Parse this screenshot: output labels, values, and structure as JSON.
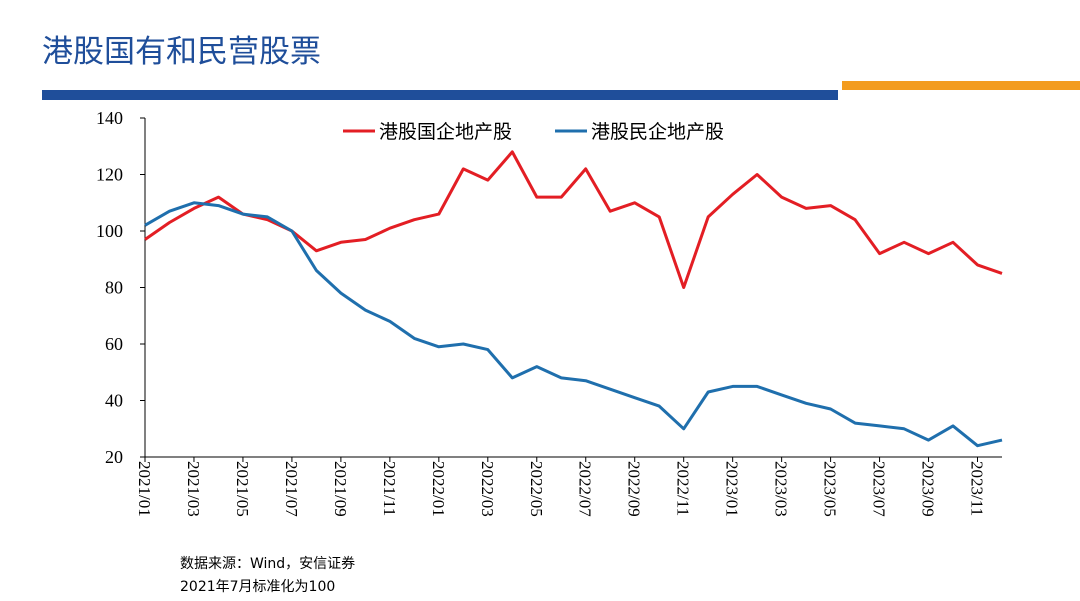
{
  "title": "港股国有和民营股票",
  "notes": [
    "数据来源：Wind，安信证券",
    "2021年7月标准化为100"
  ],
  "chart_data": {
    "type": "line",
    "categories": [
      "2021/01",
      null,
      "2021/03",
      null,
      "2021/05",
      null,
      "2021/07",
      null,
      "2021/09",
      null,
      "2021/11",
      null,
      "2022/01",
      null,
      "2022/03",
      null,
      "2022/05",
      null,
      "2022/07",
      null,
      "2022/09",
      null,
      "2022/11",
      null,
      "2023/01",
      null,
      "2023/03",
      null,
      "2023/05",
      null,
      "2023/07",
      null,
      "2023/09",
      null,
      "2023/11",
      null
    ],
    "series": [
      {
        "name": "港股国企地产股",
        "color": "#e31e24",
        "values": [
          97,
          103,
          108,
          112,
          106,
          104,
          100,
          93,
          96,
          97,
          101,
          104,
          106,
          122,
          118,
          128,
          112,
          112,
          122,
          107,
          110,
          105,
          80,
          105,
          113,
          120,
          112,
          108,
          109,
          104,
          92,
          96,
          92,
          96,
          88,
          85
        ]
      },
      {
        "name": "港股民企地产股",
        "color": "#1f6fad",
        "values": [
          102,
          107,
          110,
          109,
          106,
          105,
          100,
          86,
          78,
          72,
          68,
          62,
          59,
          60,
          58,
          48,
          52,
          48,
          47,
          44,
          41,
          38,
          30,
          43,
          45,
          45,
          42,
          39,
          37,
          32,
          31,
          30,
          26,
          31,
          24,
          26
        ]
      }
    ],
    "ylim": [
      20,
      140
    ],
    "yticks": [
      20,
      40,
      60,
      80,
      100,
      120,
      140
    ]
  }
}
